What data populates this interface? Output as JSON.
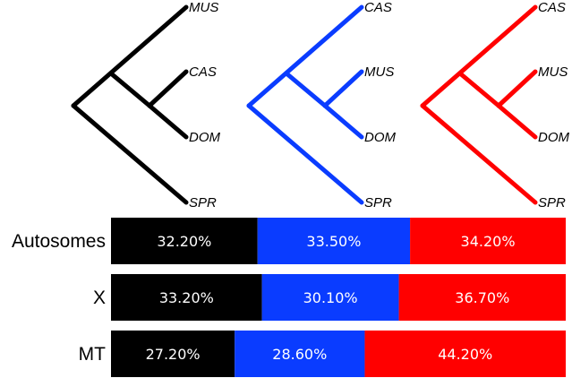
{
  "colors": {
    "topology_1": "#000000",
    "topology_2": "#0a3cff",
    "topology_3": "#ff0000"
  },
  "trees": [
    {
      "color_key": "topology_1",
      "tips": [
        "MUS",
        "CAS",
        "DOM",
        "SPR"
      ]
    },
    {
      "color_key": "topology_2",
      "tips": [
        "CAS",
        "MUS",
        "DOM",
        "SPR"
      ]
    },
    {
      "color_key": "topology_3",
      "tips": [
        "CAS",
        "MUS",
        "DOM",
        "SPR"
      ]
    }
  ],
  "chart_data": {
    "type": "bar",
    "stacked": true,
    "orientation": "horizontal",
    "categories": [
      "Autosomes",
      "X",
      "MT"
    ],
    "series": [
      {
        "color_key": "topology_1",
        "values": [
          32.2,
          33.2,
          27.2
        ],
        "labels": [
          "32.20%",
          "33.20%",
          "27.20%"
        ]
      },
      {
        "color_key": "topology_2",
        "values": [
          33.5,
          30.1,
          28.6
        ],
        "labels": [
          "33.50%",
          "30.10%",
          "28.60%"
        ]
      },
      {
        "color_key": "topology_3",
        "values": [
          34.2,
          36.7,
          44.2
        ],
        "labels": [
          "34.20%",
          "36.70%",
          "44.20%"
        ]
      }
    ]
  }
}
